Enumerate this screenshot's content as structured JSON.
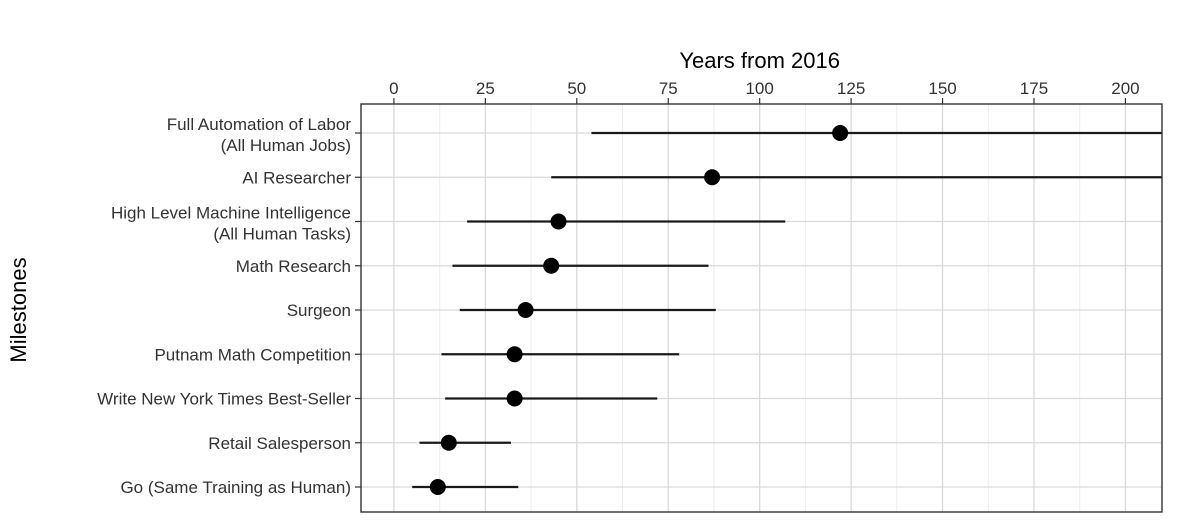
{
  "chart_data": {
    "type": "scatter",
    "title": "",
    "xlabel": "Years from 2016",
    "ylabel": "Milestones",
    "xlim": [
      -9,
      210
    ],
    "x_ticks": [
      0,
      25,
      50,
      75,
      100,
      125,
      150,
      175,
      200
    ],
    "x_axis_position": "top",
    "grid": true,
    "categories": [
      [
        "Full Automation of Labor",
        "(All Human Jobs)"
      ],
      [
        "AI Researcher"
      ],
      [
        "High Level Machine Intelligence",
        "(All Human Tasks)"
      ],
      [
        "Math Research"
      ],
      [
        "Surgeon"
      ],
      [
        "Putnam Math Competition"
      ],
      [
        "Write New York Times Best-Seller"
      ],
      [
        "Retail Salesperson"
      ],
      [
        "Go (Same Training as Human)"
      ]
    ],
    "values": [
      122,
      87,
      45,
      43,
      36,
      33,
      33,
      15,
      12
    ],
    "lower": [
      54,
      43,
      20,
      16,
      18,
      13,
      14,
      7,
      5
    ],
    "upper": [
      210,
      210,
      107,
      86,
      88,
      78,
      72,
      32,
      34
    ],
    "colors": {
      "point": "#000000",
      "line": "#1a1a1a",
      "grid_major": "#d9d9d9",
      "grid_minor": "#ededed",
      "border": "#333333"
    }
  }
}
